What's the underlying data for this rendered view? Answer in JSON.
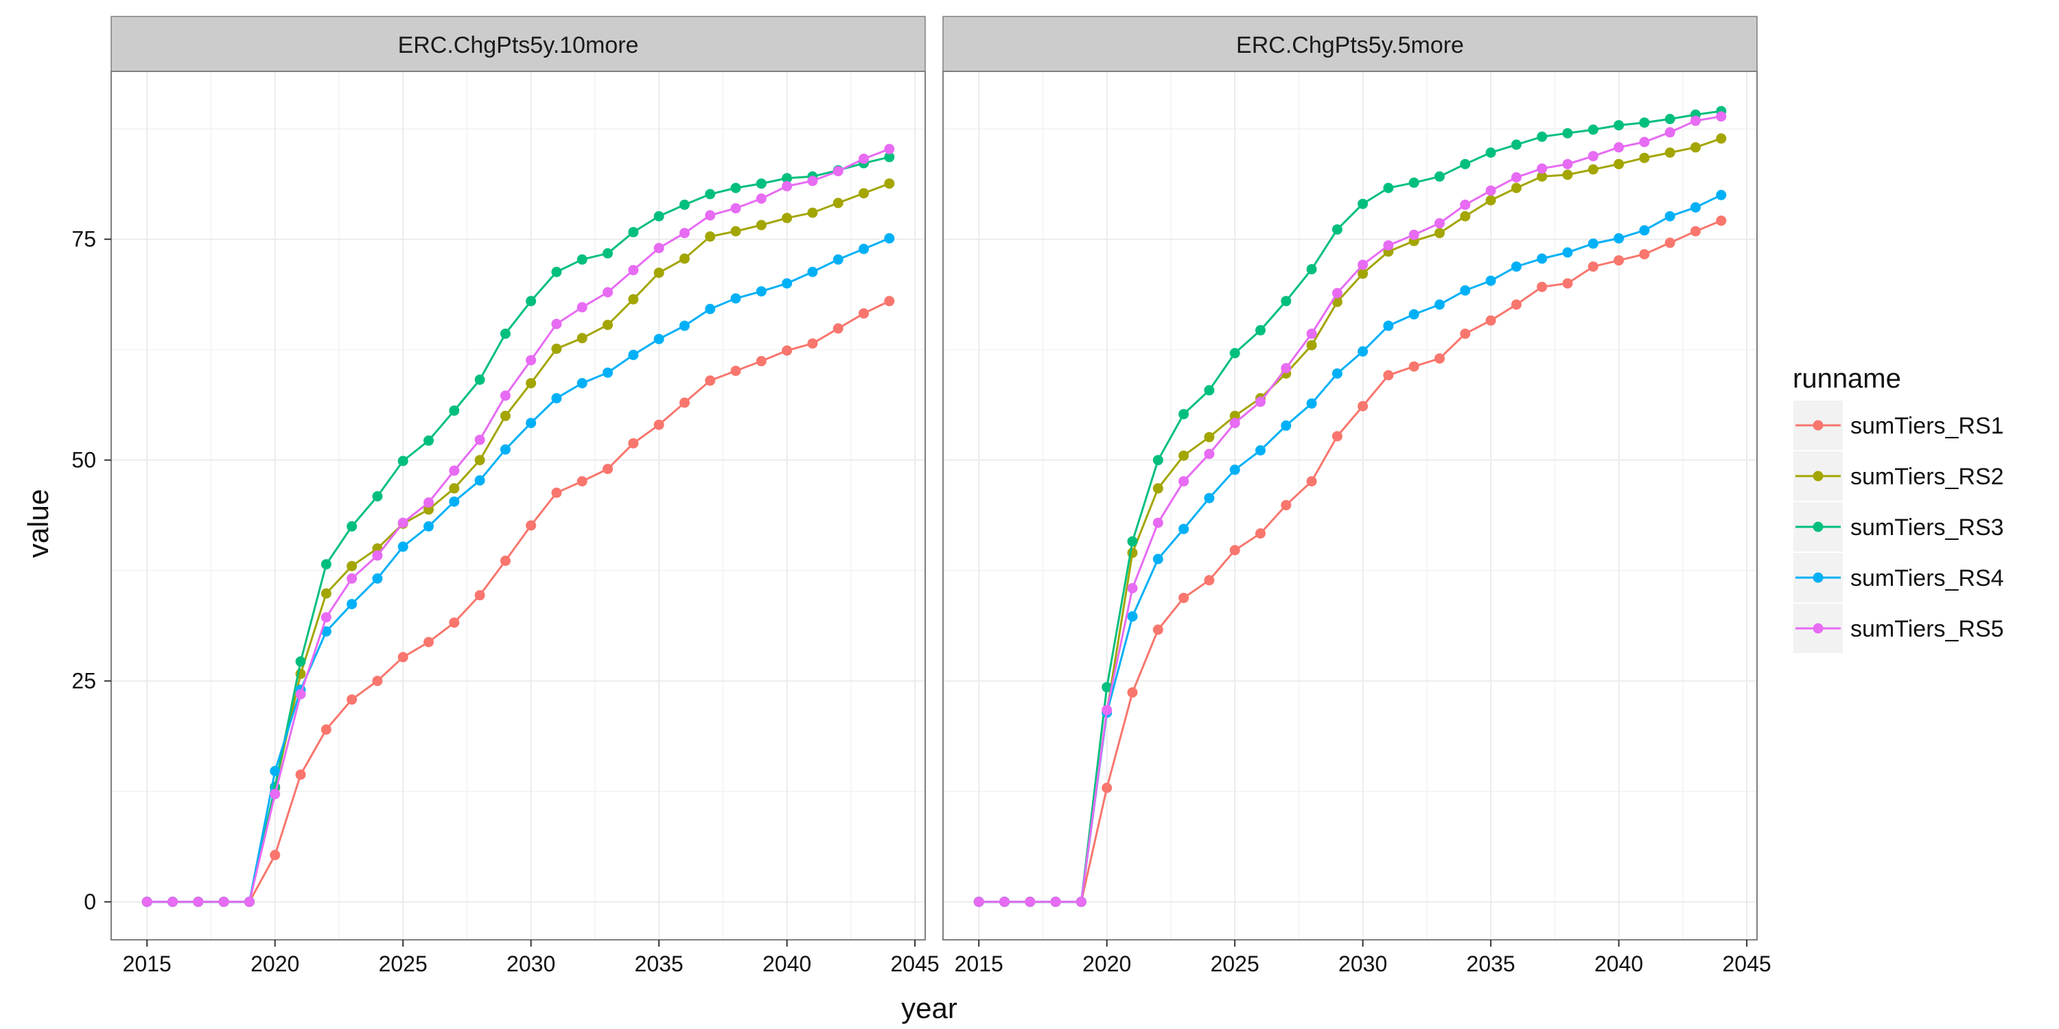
{
  "chart_data": {
    "type": "line",
    "xlabel": "year",
    "ylabel": "value",
    "xlim": [
      2013.6,
      2045.4
    ],
    "ylim": [
      -4.3,
      94
    ],
    "xticks": [
      2015,
      2020,
      2025,
      2030,
      2035,
      2040,
      2045
    ],
    "yticks": [
      0,
      25,
      50,
      75
    ],
    "grid": true,
    "legend": {
      "title": "runname",
      "placement": "right"
    },
    "x": [
      2015,
      2016,
      2017,
      2018,
      2019,
      2020,
      2021,
      2022,
      2023,
      2024,
      2025,
      2026,
      2027,
      2028,
      2029,
      2030,
      2031,
      2032,
      2033,
      2034,
      2035,
      2036,
      2037,
      2038,
      2039,
      2040,
      2041,
      2042,
      2043,
      2044
    ],
    "colors": {
      "sumTiers_RS1": "#F8766D",
      "sumTiers_RS2": "#A3A500",
      "sumTiers_RS3": "#00BF7D",
      "sumTiers_RS4": "#00B0F6",
      "sumTiers_RS5": "#E76BF3"
    },
    "panels": [
      {
        "title": "ERC.ChgPts5y.10more",
        "series": [
          {
            "name": "sumTiers_RS1",
            "values": [
              0,
              0,
              0,
              0,
              0,
              5.3,
              14.4,
              19.5,
              22.9,
              25.0,
              27.7,
              29.4,
              31.6,
              34.7,
              38.6,
              42.6,
              46.3,
              47.6,
              49.0,
              51.9,
              54.0,
              56.5,
              59.0,
              60.1,
              61.2,
              62.4,
              63.2,
              64.9,
              66.6,
              68.0
            ]
          },
          {
            "name": "sumTiers_RS2",
            "values": [
              0,
              0,
              0,
              0,
              0,
              12.9,
              25.8,
              34.9,
              38.0,
              40.0,
              42.8,
              44.4,
              46.8,
              50.0,
              55.0,
              58.7,
              62.6,
              63.8,
              65.3,
              68.2,
              71.2,
              72.8,
              75.3,
              75.9,
              76.6,
              77.4,
              78.0,
              79.1,
              80.2,
              81.3
            ]
          },
          {
            "name": "sumTiers_RS3",
            "values": [
              0,
              0,
              0,
              0,
              0,
              13.0,
              27.2,
              38.2,
              42.5,
              45.9,
              49.9,
              52.2,
              55.6,
              59.1,
              64.3,
              68.0,
              71.3,
              72.7,
              73.4,
              75.8,
              77.6,
              78.9,
              80.1,
              80.8,
              81.3,
              81.9,
              82.1,
              82.8,
              83.6,
              84.3
            ]
          },
          {
            "name": "sumTiers_RS4",
            "values": [
              0,
              0,
              0,
              0,
              0,
              14.8,
              24.0,
              30.6,
              33.7,
              36.6,
              40.2,
              42.5,
              45.3,
              47.7,
              51.2,
              54.2,
              57.0,
              58.7,
              59.9,
              61.9,
              63.7,
              65.2,
              67.1,
              68.3,
              69.1,
              70.0,
              71.3,
              72.7,
              73.9,
              75.1
            ]
          },
          {
            "name": "sumTiers_RS5",
            "values": [
              0,
              0,
              0,
              0,
              0,
              12.2,
              23.5,
              32.2,
              36.6,
              39.2,
              42.9,
              45.2,
              48.8,
              52.3,
              57.3,
              61.3,
              65.4,
              67.3,
              69.0,
              71.5,
              74.0,
              75.7,
              77.7,
              78.5,
              79.6,
              81.0,
              81.6,
              82.7,
              84.1,
              85.2
            ]
          }
        ]
      },
      {
        "title": "ERC.ChgPts5y.5more",
        "series": [
          {
            "name": "sumTiers_RS1",
            "values": [
              0,
              0,
              0,
              0,
              0,
              12.9,
              23.7,
              30.8,
              34.4,
              36.4,
              39.8,
              41.7,
              44.9,
              47.6,
              52.7,
              56.1,
              59.6,
              60.6,
              61.5,
              64.3,
              65.8,
              67.6,
              69.6,
              70.0,
              71.9,
              72.6,
              73.3,
              74.6,
              75.9,
              77.1
            ]
          },
          {
            "name": "sumTiers_RS2",
            "values": [
              0,
              0,
              0,
              0,
              0,
              21.5,
              39.5,
              46.8,
              50.5,
              52.6,
              55.0,
              57.0,
              59.8,
              63.0,
              67.9,
              71.1,
              73.6,
              74.8,
              75.7,
              77.6,
              79.4,
              80.8,
              82.1,
              82.3,
              82.9,
              83.5,
              84.2,
              84.8,
              85.4,
              86.4
            ]
          },
          {
            "name": "sumTiers_RS3",
            "values": [
              0,
              0,
              0,
              0,
              0,
              24.3,
              40.8,
              50.0,
              55.2,
              57.9,
              62.1,
              64.7,
              68.0,
              71.6,
              76.1,
              79.0,
              80.8,
              81.4,
              82.1,
              83.5,
              84.8,
              85.7,
              86.6,
              87.0,
              87.4,
              87.9,
              88.2,
              88.6,
              89.1,
              89.5
            ]
          },
          {
            "name": "sumTiers_RS4",
            "values": [
              0,
              0,
              0,
              0,
              0,
              21.4,
              32.3,
              38.8,
              42.2,
              45.7,
              48.9,
              51.1,
              53.9,
              56.4,
              59.8,
              62.3,
              65.2,
              66.5,
              67.6,
              69.2,
              70.3,
              71.9,
              72.8,
              73.5,
              74.5,
              75.1,
              76.0,
              77.6,
              78.6,
              80.0
            ]
          },
          {
            "name": "sumTiers_RS5",
            "values": [
              0,
              0,
              0,
              0,
              0,
              21.7,
              35.5,
              42.9,
              47.6,
              50.7,
              54.2,
              56.6,
              60.4,
              64.3,
              68.9,
              72.1,
              74.3,
              75.5,
              76.8,
              78.9,
              80.5,
              82.0,
              83.0,
              83.5,
              84.4,
              85.4,
              86.0,
              87.1,
              88.4,
              88.9
            ]
          }
        ]
      }
    ]
  }
}
